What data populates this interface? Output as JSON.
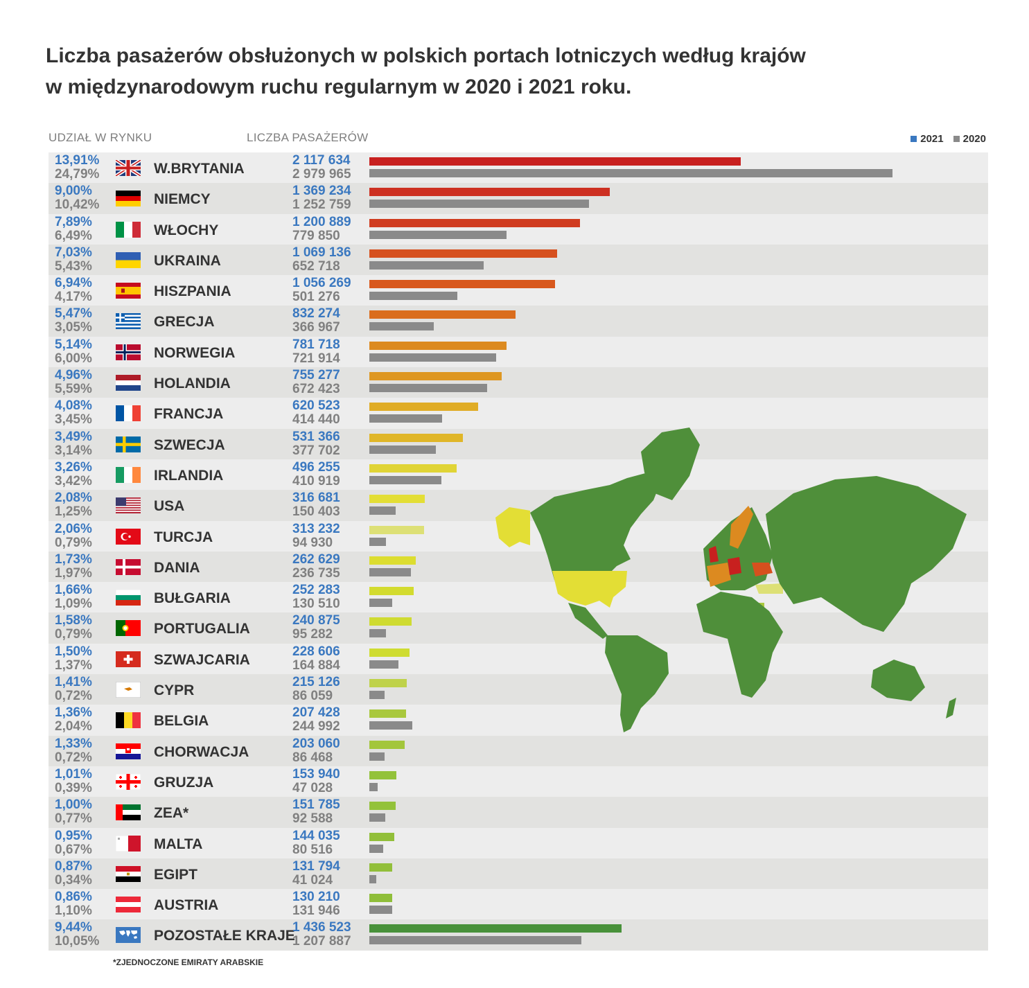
{
  "title": {
    "line1": "Liczba pasażerów obsłużonych w polskich portach lotniczych według krajów",
    "line2": "w międzynarodowym ruchu regularnym w 2020 i 2021 roku."
  },
  "headers": {
    "share": "UDZIAŁ W RYNKU",
    "passengers": "LICZBA PASAŻERÓW"
  },
  "legend": [
    {
      "label": "2021",
      "color": "#3a78c0"
    },
    {
      "label": "2020",
      "color": "#8a8a8a"
    }
  ],
  "footnote": "*ZJEDNOCZONE EMIRATY ARABSKIE",
  "chart_data": {
    "type": "bar",
    "orientation": "horizontal",
    "categories": [
      "W.BRYTANIA",
      "NIEMCY",
      "WŁOCHY",
      "UKRAINA",
      "HISZPANIA",
      "GRECJA",
      "NORWEGIA",
      "HOLANDIA",
      "FRANCJA",
      "SZWECJA",
      "IRLANDIA",
      "USA",
      "TURCJA",
      "DANIA",
      "BUŁGARIA",
      "PORTUGALIA",
      "SZWAJCARIA",
      "CYPR",
      "BELGIA",
      "CHORWACJA",
      "GRUZJA",
      "ZEA*",
      "MALTA",
      "EGIPT",
      "AUSTRIA",
      "POZOSTAŁE KRAJE"
    ],
    "series": [
      {
        "name": "2021",
        "values": [
          2117634,
          1369234,
          1200889,
          1069136,
          1056269,
          832274,
          781718,
          755277,
          620523,
          531366,
          496255,
          316681,
          313232,
          262629,
          252283,
          240875,
          228606,
          215126,
          207428,
          203060,
          153940,
          151785,
          144035,
          131794,
          130210,
          1436523
        ],
        "value_labels": [
          "2 117 634",
          "1 369 234",
          "1 200 889",
          "1 069 136",
          "1 056 269",
          "832 274",
          "781 718",
          "755 277",
          "620 523",
          "531 366",
          "496 255",
          "316 681",
          "313 232",
          "262 629",
          "252 283",
          "240 875",
          "228 606",
          "215 126",
          "207 428",
          "203 060",
          "153 940",
          "151 785",
          "144 035",
          "131 794",
          "130 210",
          "1 436 523"
        ],
        "shares": [
          "13,91%",
          "9,00%",
          "7,89%",
          "7,03%",
          "6,94%",
          "5,47%",
          "5,14%",
          "4,96%",
          "4,08%",
          "3,49%",
          "3,26%",
          "2,08%",
          "2,06%",
          "1,73%",
          "1,66%",
          "1,58%",
          "1,50%",
          "1,41%",
          "1,36%",
          "1,33%",
          "1,01%",
          "1,00%",
          "0,95%",
          "0,87%",
          "0,86%",
          "9,44%"
        ],
        "bar_colors": [
          "#c8201f",
          "#cd3021",
          "#d03c20",
          "#d6501e",
          "#d8581d",
          "#da6d1d",
          "#dc8a20",
          "#de9722",
          "#e0ac25",
          "#e0b628",
          "#e0d436",
          "#e3de35",
          "#dde076",
          "#dcdd30",
          "#d3db2f",
          "#cfdb31",
          "#cfdc31",
          "#bfd24a",
          "#a9c83e",
          "#a3c63b",
          "#93c23a",
          "#93c23a",
          "#92bf3a",
          "#92bf3a",
          "#8fbe3a",
          "#48913a"
        ]
      },
      {
        "name": "2020",
        "values": [
          2979965,
          1252759,
          779850,
          652718,
          501276,
          366967,
          721914,
          672423,
          414440,
          377702,
          410919,
          150403,
          94930,
          236735,
          130510,
          95282,
          164884,
          86059,
          244992,
          86468,
          47028,
          92588,
          80516,
          41024,
          131946,
          1207887
        ],
        "value_labels": [
          "2 979 965",
          "1 252 759",
          "779 850",
          "652 718",
          "501 276",
          "366 967",
          "721 914",
          "672 423",
          "414 440",
          "377 702",
          "410 919",
          "150 403",
          "94 930",
          "236 735",
          "130 510",
          "95 282",
          "164 884",
          "86 059",
          "244 992",
          "86 468",
          "47 028",
          "92 588",
          "80 516",
          "41 024",
          "131 946",
          "1 207 887"
        ],
        "shares": [
          "24,79%",
          "10,42%",
          "6,49%",
          "5,43%",
          "4,17%",
          "3,05%",
          "6,00%",
          "5,59%",
          "3,45%",
          "3,14%",
          "3,42%",
          "1,25%",
          "0,79%",
          "1,97%",
          "1,09%",
          "0,79%",
          "1,37%",
          "0,72%",
          "2,04%",
          "0,72%",
          "0,39%",
          "0,77%",
          "0,67%",
          "0,34%",
          "1,10%",
          "10,05%"
        ]
      }
    ],
    "xlim": [
      0,
      3000000
    ],
    "grid": false,
    "legend_position": "top-right"
  },
  "flags": [
    "uk",
    "de",
    "it",
    "ua",
    "es",
    "gr",
    "no",
    "nl",
    "fr",
    "se",
    "ie",
    "us",
    "tr",
    "dk",
    "bg",
    "pt",
    "ch",
    "cy",
    "be",
    "hr",
    "ge",
    "ae",
    "mt",
    "eg",
    "at",
    "world"
  ],
  "map": {
    "land_color": "#4f8f3a",
    "highlight_colors": [
      "#e3de35",
      "#c8201f",
      "#dc8a20",
      "#d6501e",
      "#a9c83e"
    ]
  }
}
